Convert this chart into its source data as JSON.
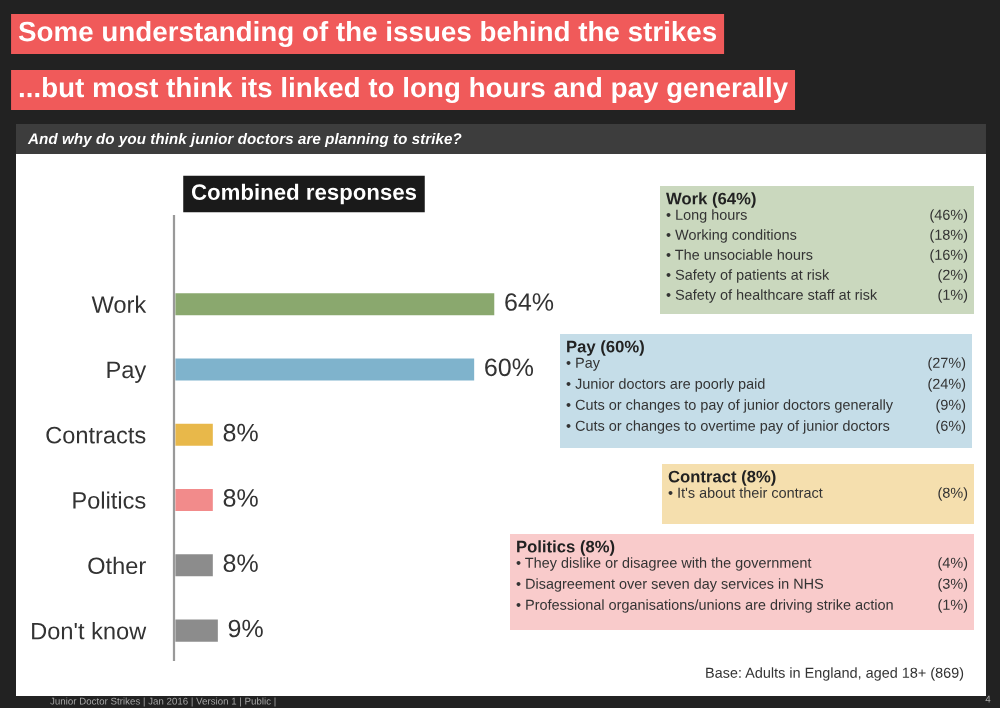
{
  "chart_data": {
    "type": "bar",
    "orientation": "horizontal",
    "title": "Some understanding of the issues behind the strikes",
    "subtitle": "...but most think its linked to long hours and pay generally",
    "categories": [
      "Work",
      "Pay",
      "Contracts",
      "Politics",
      "Other",
      "Don't know"
    ],
    "values": [
      64,
      60,
      8,
      8,
      8,
      9
    ],
    "colors": [
      "#8aa86e",
      "#7fb3cc",
      "#e8b84a",
      "#f28b8b",
      "#8c8c8c",
      "#8c8c8c"
    ],
    "value_labels": [
      "64%",
      "60%",
      "8%",
      "8%",
      "8%",
      "9%"
    ],
    "tick_labels": "y",
    "annotations": [
      "And why do you think junior doctors are planning to strike?",
      "Combined responses",
      "Work (64%)\n• Long hours (46%)\n• Working conditions (18%)\n• The unsociable hours (16%)\n• Safety of patients at risk (2%)\n• Safety of healthcare staff at risk (1%)",
      "Pay (60%)\n• Pay (27%)\n• Junior doctors are poorly paid (24%)\n• Cuts or changes to pay of junior doctors generally (9%)\n• Cuts or changes to overtime pay of junior doctors (6%)",
      "Contract (8%)\n• It's about their contract (8%)",
      "Politics (8%)\n• They dislike or disagree with the government (4%)\n• Disagreement over seven day services in NHS (3%)\n• Professional organisations/unions are driving strike action (1%)",
      "Base: Adults in England, aged 18+ (869)",
      "Junior Doctor Strikes | Jan 2016 | Version 1 | Public |",
      "4"
    ]
  }
}
